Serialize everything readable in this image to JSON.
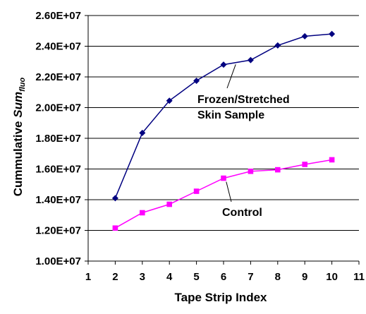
{
  "chart_data": {
    "type": "line",
    "xlabel": "Tape Strip Index",
    "ylabel": {
      "prefix": "Cummulative ",
      "italic": "Sum",
      "subscript": "fluo"
    },
    "x_ticks": [
      "1",
      "2",
      "3",
      "4",
      "5",
      "6",
      "7",
      "8",
      "9",
      "10",
      "11"
    ],
    "y_ticks": [
      "1.00E+07",
      "1.20E+07",
      "1.40E+07",
      "1.60E+07",
      "1.80E+07",
      "2.00E+07",
      "2.20E+07",
      "2.40E+07",
      "2.60E+07"
    ],
    "xlim": [
      1,
      11
    ],
    "ylim": [
      10000000,
      26000000
    ],
    "grid": "horizontal",
    "legend": "none",
    "series": [
      {
        "name": "Frozen/Stretched Skin Sample",
        "label_lines": [
          "Frozen/Stretched",
          "Skin Sample"
        ],
        "color": "#000080",
        "marker": "diamond",
        "x": [
          2,
          3,
          4,
          5,
          6,
          7,
          8,
          9,
          10
        ],
        "y": [
          14100000,
          18350000,
          20450000,
          21750000,
          22800000,
          23100000,
          24050000,
          24650000,
          24800000
        ]
      },
      {
        "name": "Control",
        "label_lines": [
          "Control"
        ],
        "color": "#ff00ff",
        "marker": "square",
        "x": [
          2,
          3,
          4,
          5,
          6,
          7,
          8,
          9,
          10
        ],
        "y": [
          12150000,
          13150000,
          13700000,
          14550000,
          15400000,
          15850000,
          15950000,
          16300000,
          16600000
        ]
      }
    ]
  }
}
